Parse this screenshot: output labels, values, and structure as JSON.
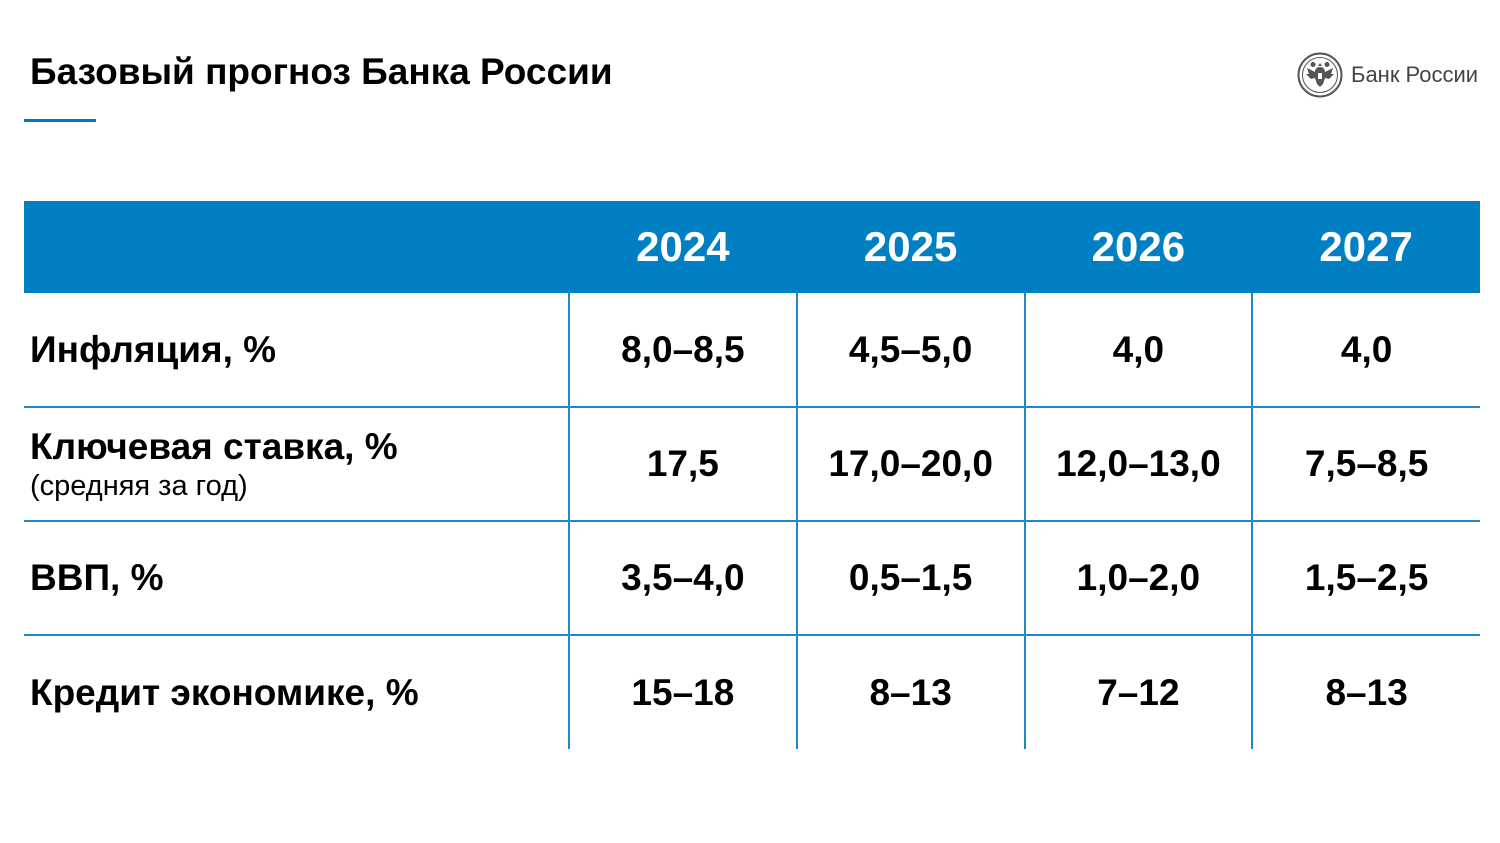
{
  "page": {
    "title": "Базовый прогноз Банка России"
  },
  "brand": {
    "name": "Банк России",
    "emblem_icon": "double-headed-eagle-icon",
    "color": "#555555"
  },
  "colors": {
    "accent": "#0080c3",
    "rule": "#1f88c8"
  },
  "table": {
    "columns": [
      "",
      "2024",
      "2025",
      "2026",
      "2027"
    ],
    "rows": [
      {
        "label": "Инфляция, %",
        "note": "",
        "values": [
          "8,0–8,5",
          "4,5–5,0",
          "4,0",
          "4,0"
        ]
      },
      {
        "label": "Ключевая ставка, %",
        "note": "(средняя за год)",
        "values": [
          "17,5",
          "17,0–20,0",
          "12,0–13,0",
          "7,5–8,5"
        ]
      },
      {
        "label": "ВВП, %",
        "note": "",
        "values": [
          "3,5–4,0",
          "0,5–1,5",
          "1,0–2,0",
          "1,5–2,5"
        ]
      },
      {
        "label": "Кредит экономике, %",
        "note": "",
        "values": [
          "15–18",
          "8–13",
          "7–12",
          "8–13"
        ]
      }
    ]
  }
}
